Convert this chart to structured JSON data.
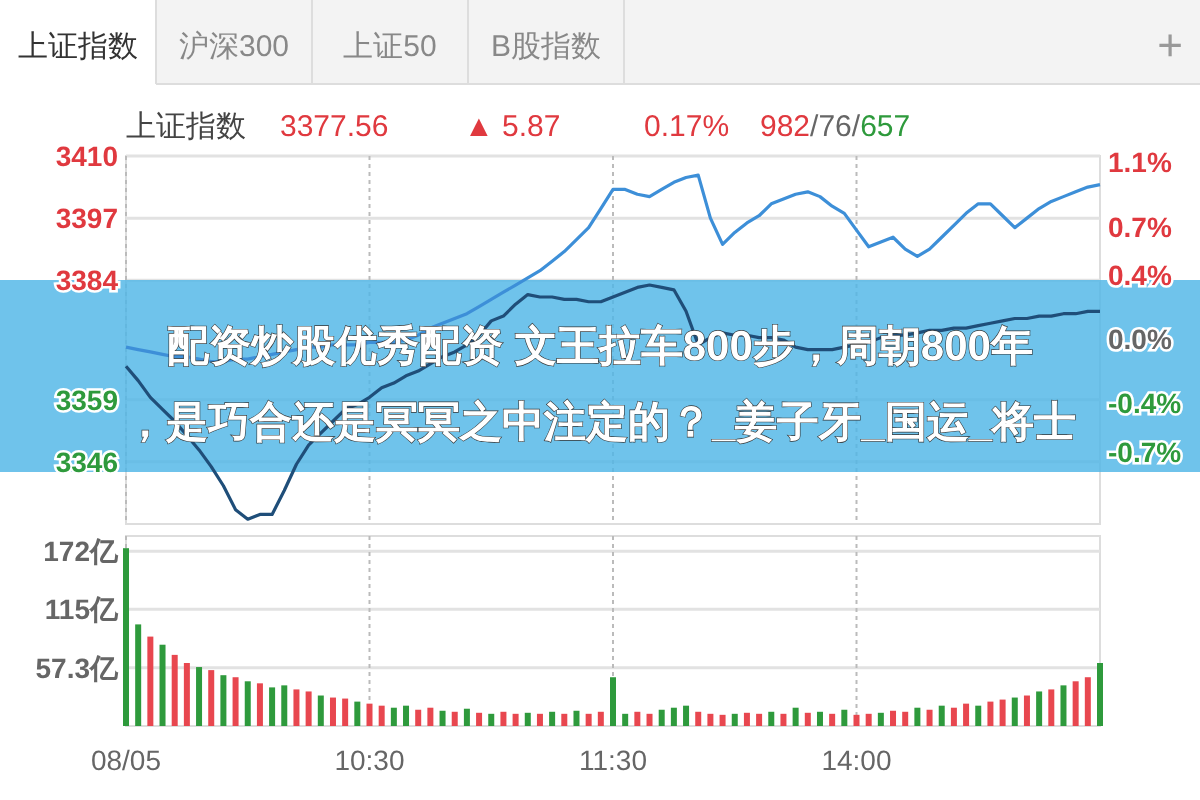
{
  "chart_data": [
    {
      "type": "other",
      "annotations": [
        "上证指数",
        "沪深300",
        "上证50",
        "B股指数",
        "+"
      ]
    },
    {
      "type": "line",
      "title": "上证指数",
      "categories": [
        null,
        null,
        null,
        null,
        null,
        null,
        null,
        null,
        null,
        null,
        null,
        null,
        null,
        null,
        null,
        null,
        null,
        null,
        null,
        null,
        null,
        null,
        null,
        null,
        null,
        null,
        null,
        null,
        null,
        null,
        null,
        null,
        null,
        null,
        null,
        null,
        null,
        null,
        null,
        null,
        null,
        null,
        null,
        null,
        null,
        null,
        null,
        null,
        null,
        null,
        null,
        null,
        null,
        null,
        null,
        null,
        null,
        null,
        null,
        null,
        null,
        null,
        null,
        null,
        null,
        null,
        null,
        null,
        null,
        null,
        null,
        null,
        null,
        null,
        null,
        null,
        null,
        null,
        null,
        null,
        null
      ],
      "tick_labels": "y",
      "ylim": [
        3333,
        3410
      ],
      "yticks": [
        3410,
        3397,
        3384,
        3359,
        3346
      ],
      "y2lim": [
        -1.15,
        1.14
      ],
      "y2ticks": [
        {
          "value": 1.1,
          "label": "1.1%"
        },
        {
          "value": 0.7,
          "label": "0.7%"
        },
        {
          "value": 0.4,
          "label": "0.4%"
        },
        {
          "value": 0,
          "label": "0.0%"
        },
        {
          "value": -0.4,
          "label": "-0.4%"
        },
        {
          "value": -0.7,
          "label": "-0.7%"
        }
      ],
      "grid": true,
      "series": [
        {
          "color": "#3d8fd8",
          "values": [
            3370,
            3369.5,
            3369,
            3368.5,
            3368,
            3368,
            3367.5,
            3367,
            3367,
            3367.5,
            3367.5,
            3368,
            3368.5,
            3369,
            3369.5,
            3370,
            3370,
            3370.5,
            3370.5,
            3370.5,
            3371,
            3371,
            3371,
            3371.5,
            3372.5,
            3374,
            3375,
            3376,
            3377,
            3378.5,
            3380,
            3381.5,
            3383,
            3384.5,
            3386,
            3388,
            3390,
            3392.5,
            3395,
            3399,
            3403,
            3403,
            3402,
            3401.5,
            3403,
            3404.5,
            3405.5,
            3406,
            3397,
            3391.5,
            3394,
            3396,
            3397.5,
            3400,
            3401,
            3402,
            3402.5,
            3401.5,
            3399.5,
            3398,
            3394.5,
            3391,
            3392,
            3393,
            3390.5,
            3389,
            3390.5,
            3393,
            3395.5,
            3398,
            3400,
            3400,
            3397.5,
            3395,
            3397,
            3399,
            3400.5,
            3401.5,
            3402.5,
            3403.5,
            3404
          ]
        },
        {
          "color": "#1f4e79",
          "values": [
            3366,
            3363,
            3359.5,
            3357,
            3354.5,
            3351.5,
            3348.5,
            3345,
            3341,
            3336,
            3334,
            3335,
            3335,
            3340,
            3345.5,
            3349.5,
            3352,
            3354.5,
            3357,
            3358,
            3359.5,
            3361.5,
            3362.5,
            3364,
            3365,
            3366.5,
            3368,
            3369,
            3370.5,
            3372.5,
            3375.5,
            3376.5,
            3379,
            3381,
            3380.5,
            3380.5,
            3380,
            3380,
            3379.5,
            3379.5,
            3380.5,
            3381.5,
            3382.5,
            3383,
            3382.5,
            3382,
            3377.5,
            3370.5,
            3372,
            3373,
            3372.5,
            3372.5,
            3372,
            3372,
            3371.5,
            3370,
            3369.5,
            3369.5,
            3369.5,
            3370,
            3370.5,
            3371,
            3372,
            3372.5,
            3372.5,
            3373,
            3373.5,
            3373.5,
            3374,
            3374,
            3374.5,
            3375,
            3375.5,
            3376,
            3376,
            3376.5,
            3376.5,
            3377,
            3377,
            3377.5,
            3377.5
          ]
        }
      ],
      "annotations": [
        "3377.56",
        "▲ 5.87",
        "0.17%",
        "982/76/657",
        "配资炒股优秀配资 文王拉车800步，周朝800年",
        "，是巧合还是冥冥之中注定的？_姜子牙_国运_将士"
      ]
    },
    {
      "type": "bar",
      "categories": [
        "08/05",
        null,
        null,
        null,
        null,
        null,
        null,
        null,
        null,
        null,
        null,
        null,
        null,
        null,
        null,
        null,
        null,
        null,
        null,
        null,
        "10:30",
        null,
        null,
        null,
        null,
        null,
        null,
        null,
        null,
        null,
        null,
        null,
        null,
        null,
        null,
        null,
        null,
        null,
        null,
        null,
        "11:30",
        null,
        null,
        null,
        null,
        null,
        null,
        null,
        null,
        null,
        null,
        null,
        null,
        null,
        null,
        null,
        null,
        null,
        null,
        null,
        "14:00",
        null,
        null,
        null,
        null,
        null,
        null,
        null,
        null,
        null,
        null,
        null,
        null,
        null,
        null,
        null,
        null,
        null,
        null,
        null,
        null
      ],
      "ylim": [
        0,
        187
      ],
      "yticks": [
        {
          "value": 57.3,
          "label": "57.3亿"
        },
        {
          "value": 115,
          "label": "115亿"
        },
        {
          "value": 172,
          "label": "172亿"
        }
      ],
      "grid": true,
      "values": [
        175,
        100,
        88,
        80,
        70,
        62,
        58,
        55,
        50,
        48,
        44,
        42,
        38,
        40,
        36,
        34,
        30,
        28,
        27,
        24,
        22,
        20,
        18,
        20,
        16,
        18,
        15,
        14,
        17,
        13,
        12,
        14,
        12,
        13,
        12,
        14,
        12,
        15,
        12,
        14,
        48,
        12,
        14,
        12,
        16,
        18,
        20,
        14,
        12,
        11,
        12,
        13,
        12,
        14,
        12,
        18,
        13,
        14,
        12,
        16,
        11,
        12,
        13,
        15,
        14,
        18,
        16,
        20,
        18,
        22,
        20,
        24,
        26,
        28,
        30,
        34,
        36,
        40,
        44,
        48,
        62
      ],
      "colors": [
        "#2e9a3c",
        "#2e9a3c",
        "#e8474f",
        "#2e9a3c",
        "#e8474f",
        "#e8474f",
        "#2e9a3c",
        "#e8474f",
        "#2e9a3c",
        "#e8474f",
        "#2e9a3c",
        "#e8474f",
        "#2e9a3c",
        "#2e9a3c",
        "#e8474f",
        "#e8474f",
        "#2e9a3c",
        "#e8474f",
        "#e8474f",
        "#2e9a3c",
        "#e8474f",
        "#e8474f",
        "#2e9a3c",
        "#2e9a3c",
        "#e8474f",
        "#e8474f",
        "#2e9a3c",
        "#e8474f",
        "#2e9a3c",
        "#e8474f",
        "#2e9a3c",
        "#e8474f",
        "#e8474f",
        "#2e9a3c",
        "#e8474f",
        "#2e9a3c",
        "#e8474f",
        "#2e9a3c",
        "#e8474f",
        "#e8474f",
        "#2e9a3c",
        "#2e9a3c",
        "#e8474f",
        "#e8474f",
        "#2e9a3c",
        "#2e9a3c",
        "#2e9a3c",
        "#e8474f",
        "#e8474f",
        "#e8474f",
        "#2e9a3c",
        "#e8474f",
        "#e8474f",
        "#2e9a3c",
        "#e8474f",
        "#2e9a3c",
        "#e8474f",
        "#2e9a3c",
        "#e8474f",
        "#2e9a3c",
        "#e8474f",
        "#e8474f",
        "#2e9a3c",
        "#e8474f",
        "#e8474f",
        "#2e9a3c",
        "#e8474f",
        "#2e9a3c",
        "#e8474f",
        "#e8474f",
        "#2e9a3c",
        "#e8474f",
        "#e8474f",
        "#2e9a3c",
        "#e8474f",
        "#2e9a3c",
        "#e8474f",
        "#2e9a3c",
        "#e8474f",
        "#e8474f",
        "#2e9a3c"
      ]
    }
  ]
}
